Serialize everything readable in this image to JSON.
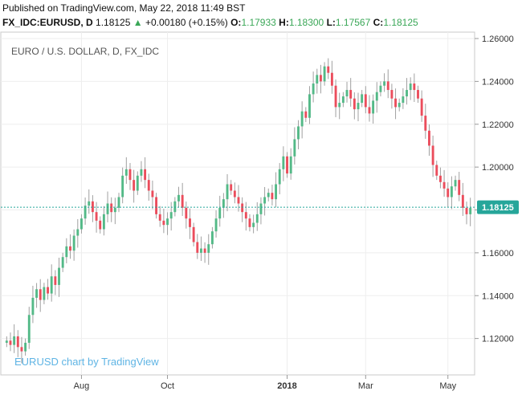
{
  "header": {
    "published": "Published on TradingView.com, May 22, 2018 11:49 BST",
    "symbol": "FX_IDC:EURUSD, D",
    "last": "1.18125",
    "change": "+0.00180 (+0.15%)",
    "open_label": "O:",
    "open": "1.17933",
    "high_label": "H:",
    "high": "1.18300",
    "low_label": "L:",
    "low": "1.17567",
    "close_label": "C:",
    "close": "1.18125"
  },
  "colors": {
    "up": "#26a69a",
    "down": "#ef5350",
    "up_bar": "#53b987",
    "down_bar": "#eb4d5c",
    "last_line": "#26a69a"
  },
  "chart_data": {
    "type": "candlestick",
    "title": "EURO / U.S. DOLLAR, D, FX_IDC",
    "watermark": "EURUSD chart by TradingView",
    "last_price_label": "1.18125",
    "ylim": [
      1.103,
      1.263
    ],
    "y_ticks": [
      "1.26000",
      "1.24000",
      "1.22000",
      "1.20000",
      "1.18000",
      "1.16000",
      "1.14000",
      "1.12000"
    ],
    "y_tick_values": [
      1.26,
      1.24,
      1.22,
      1.2,
      1.18,
      1.16,
      1.14,
      1.12
    ],
    "x_ticks": [
      {
        "label": "Aug",
        "index": 20,
        "bold": false
      },
      {
        "label": "Oct",
        "index": 43,
        "bold": false
      },
      {
        "label": "2018",
        "index": 75,
        "bold": true
      },
      {
        "label": "Mar",
        "index": 96,
        "bold": false
      },
      {
        "label": "May",
        "index": 118,
        "bold": false
      }
    ],
    "closes": [
      1.119,
      1.117,
      1.121,
      1.116,
      1.114,
      1.118,
      1.131,
      1.139,
      1.143,
      1.138,
      1.144,
      1.141,
      1.149,
      1.145,
      1.153,
      1.158,
      1.163,
      1.161,
      1.168,
      1.171,
      1.176,
      1.182,
      1.184,
      1.179,
      1.175,
      1.171,
      1.178,
      1.183,
      1.179,
      1.181,
      1.186,
      1.196,
      1.199,
      1.194,
      1.189,
      1.196,
      1.199,
      1.194,
      1.189,
      1.186,
      1.178,
      1.175,
      1.173,
      1.176,
      1.179,
      1.184,
      1.187,
      1.181,
      1.176,
      1.172,
      1.165,
      1.16,
      1.162,
      1.16,
      1.164,
      1.17,
      1.176,
      1.181,
      1.185,
      1.192,
      1.189,
      1.186,
      1.183,
      1.179,
      1.176,
      1.172,
      1.174,
      1.178,
      1.183,
      1.186,
      1.188,
      1.185,
      1.192,
      1.199,
      1.205,
      1.197,
      1.205,
      1.213,
      1.219,
      1.226,
      1.223,
      1.234,
      1.239,
      1.243,
      1.24,
      1.247,
      1.244,
      1.238,
      1.228,
      1.23,
      1.233,
      1.236,
      1.232,
      1.227,
      1.23,
      1.234,
      1.228,
      1.225,
      1.231,
      1.235,
      1.238,
      1.24,
      1.236,
      1.232,
      1.228,
      1.23,
      1.233,
      1.236,
      1.239,
      1.236,
      1.232,
      1.224,
      1.217,
      1.21,
      1.201,
      1.196,
      1.193,
      1.19,
      1.186,
      1.191,
      1.194,
      1.187,
      1.181,
      1.178,
      1.181
    ],
    "open_first": 1.118,
    "last_close": 1.18125
  }
}
